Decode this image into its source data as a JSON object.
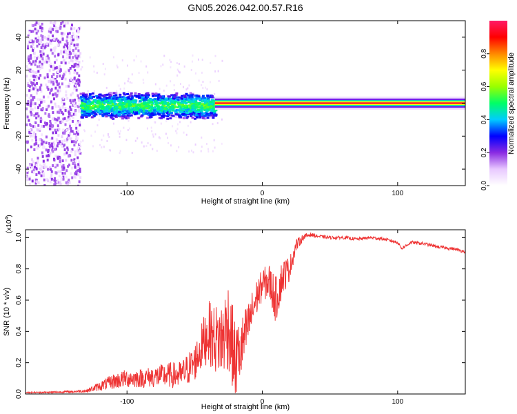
{
  "title": "GN05.2026.042.00.57.R16",
  "chart_data": [
    {
      "type": "heatmap",
      "xlabel": "Height of straight line (km)",
      "ylabel": "Frequency (Hz)",
      "xlim": [
        -175,
        150
      ],
      "ylim": [
        -50,
        50
      ],
      "xticks": [
        -100,
        0,
        100
      ],
      "yticks": [
        -40,
        -20,
        0,
        20,
        40
      ],
      "colorbar": {
        "label": "Normalized spectral amplitude",
        "range": [
          0,
          1
        ],
        "ticks": [
          0.0,
          0.2,
          0.4,
          0.6,
          0.8
        ],
        "tick_labels": [
          "0.0",
          "0.2",
          "0.4",
          "0.6",
          "0.8"
        ],
        "colormap": [
          "#ffffff",
          "#e8c8ff",
          "#8a2be2",
          "#0000ff",
          "#00ccff",
          "#00ff66",
          "#99ff00",
          "#ffff00",
          "#ff8800",
          "#ff0000",
          "#ff1a66"
        ]
      },
      "regions": [
        {
          "name": "broadband noise",
          "x_range": [
            -175,
            -135
          ],
          "y_range": [
            -50,
            50
          ],
          "amplitude": 0.15
        },
        {
          "name": "scattered band",
          "x_range": [
            -135,
            -35
          ],
          "y_range": [
            -8,
            8
          ],
          "amplitude": 0.35
        },
        {
          "name": "narrow carrier line",
          "x_range": [
            -35,
            150
          ],
          "y_center": 0,
          "amplitude": 0.95
        }
      ]
    },
    {
      "type": "line",
      "xlabel": "Height of straight line (km)",
      "ylabel": "SNR (10 * v/v)",
      "y_multiplier": "(x10",
      "y_multiplier_exp": "4",
      "y_multiplier_close": ")",
      "xlim": [
        -175,
        150
      ],
      "ylim": [
        0,
        1.05
      ],
      "xticks": [
        -100,
        0,
        100
      ],
      "yticks": [
        0.0,
        0.2,
        0.4,
        0.6,
        0.8,
        1.0
      ],
      "ytick_labels": [
        "0.0",
        "0.2",
        "0.4",
        "0.6",
        "0.8",
        "1.0"
      ],
      "series": [
        {
          "name": "SNR",
          "color": "#ee3333",
          "x": [
            -175,
            -160,
            -140,
            -130,
            -120,
            -110,
            -100,
            -90,
            -80,
            -70,
            -60,
            -50,
            -45,
            -40,
            -35,
            -30,
            -25,
            -20,
            -15,
            -10,
            -5,
            0,
            5,
            10,
            15,
            20,
            25,
            30,
            35,
            40,
            50,
            60,
            70,
            80,
            90,
            100,
            103,
            110,
            120,
            130,
            140,
            150
          ],
          "y": [
            0.01,
            0.01,
            0.015,
            0.02,
            0.05,
            0.08,
            0.1,
            0.1,
            0.11,
            0.12,
            0.12,
            0.2,
            0.3,
            0.4,
            0.35,
            0.35,
            0.45,
            0.2,
            0.3,
            0.45,
            0.6,
            0.7,
            0.72,
            0.6,
            0.75,
            0.8,
            0.95,
            1.0,
            1.02,
            1.01,
            1.0,
            1.0,
            0.99,
            1.0,
            0.99,
            0.97,
            0.93,
            0.97,
            0.96,
            0.94,
            0.93,
            0.91
          ],
          "noise": [
            0.005,
            0.005,
            0.008,
            0.01,
            0.03,
            0.05,
            0.06,
            0.06,
            0.07,
            0.08,
            0.09,
            0.12,
            0.15,
            0.2,
            0.22,
            0.25,
            0.3,
            0.25,
            0.2,
            0.15,
            0.12,
            0.1,
            0.12,
            0.15,
            0.12,
            0.08,
            0.04,
            0.02,
            0.015,
            0.01,
            0.01,
            0.01,
            0.01,
            0.01,
            0.01,
            0.01,
            0.01,
            0.01,
            0.01,
            0.01,
            0.01,
            0.01
          ]
        }
      ]
    }
  ]
}
